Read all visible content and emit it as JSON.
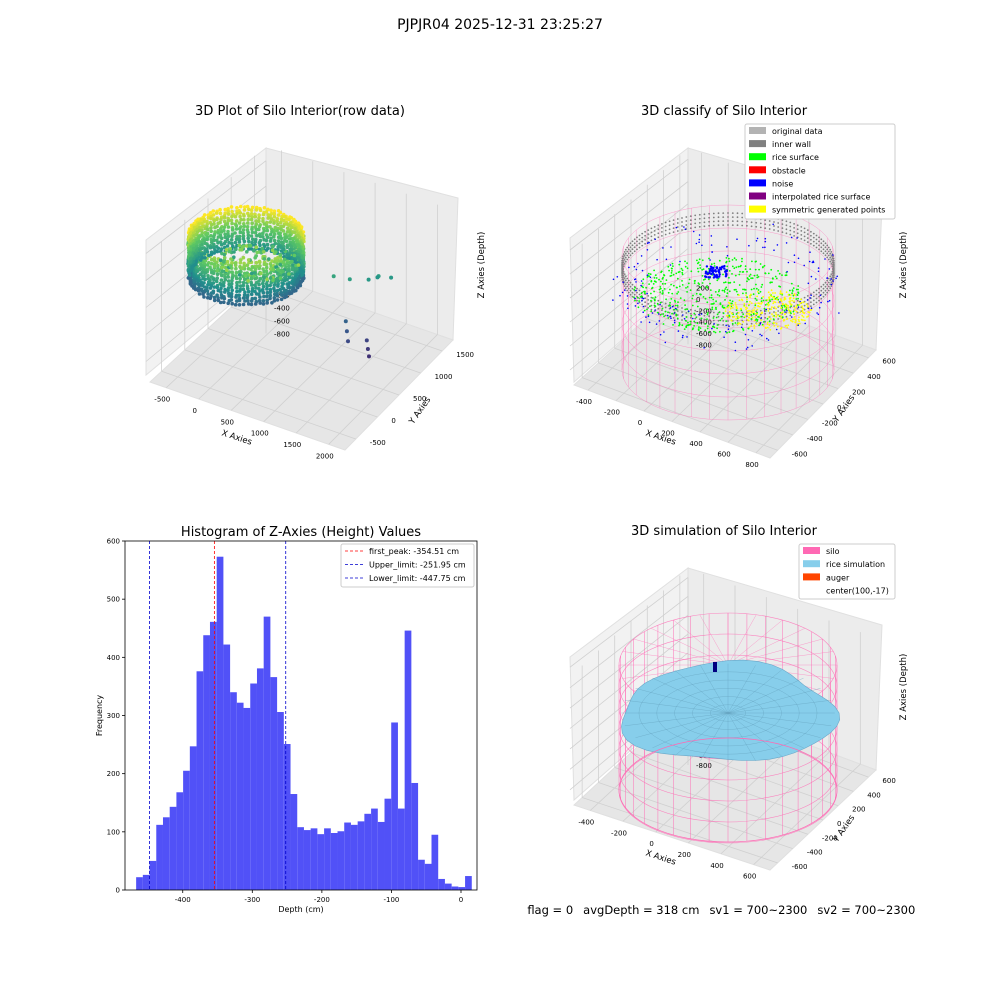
{
  "suptitle": "PJPJR04 2025-12-31 23:25:27",
  "status": {
    "flag": "flag = 0",
    "avg_depth": "avgDepth = 318 cm",
    "sv1": "sv1 = 700~2300",
    "sv2": "sv2 = 700~2300"
  },
  "colors": {
    "hist_bar": "#4b4bf7",
    "first_peak_line": "#ff0000",
    "limit_line": "#0000cc",
    "original_data": "#b3b3b3",
    "inner_wall": "#808080",
    "rice_surface": "#00ff00",
    "obstacle": "#ff0000",
    "noise": "#0000ff",
    "interpolated_rice_surface": "#800080",
    "symmetric_generated_points": "#ffff00",
    "silo": "#ff69b4",
    "rice_simulation": "#87ceeb",
    "auger": "#ff4500"
  },
  "chart_data": [
    {
      "id": "raw",
      "type": "scatter",
      "title": "3D Plot of Silo Interior(row data)",
      "xlabel": "X Axies",
      "ylabel": "Y Axies",
      "zlabel": "Z Axies (Depth)",
      "x_ticks": [
        "-500",
        "0",
        "500",
        "1000",
        "1500",
        "2000"
      ],
      "y_ticks": [
        "-500",
        "0",
        "500",
        "1000",
        "1500"
      ],
      "z_ticks": [
        "0",
        "-200",
        "-400",
        "-600",
        "-800"
      ],
      "xlim": [
        -650,
        2000
      ],
      "ylim": [
        -650,
        1600
      ],
      "zlim": [
        -950,
        50
      ],
      "colormap": "viridis",
      "outliers": [
        {
          "x": 900,
          "y": 700,
          "z": -300
        },
        {
          "x": 1050,
          "y": 800,
          "z": -330
        },
        {
          "x": 1200,
          "y": 950,
          "z": -360
        },
        {
          "x": 1300,
          "y": 1000,
          "z": -330
        },
        {
          "x": 1250,
          "y": 1050,
          "z": -370
        },
        {
          "x": 1400,
          "y": 1100,
          "z": -360
        },
        {
          "x": 1100,
          "y": 650,
          "z": -600
        },
        {
          "x": 1150,
          "y": 600,
          "z": -650
        },
        {
          "x": 1200,
          "y": 550,
          "z": -700
        },
        {
          "x": 1350,
          "y": 700,
          "z": -720
        },
        {
          "x": 1400,
          "y": 650,
          "z": -760
        },
        {
          "x": 1450,
          "y": 600,
          "z": -790
        }
      ]
    },
    {
      "id": "classify",
      "type": "scatter",
      "title": "3D classify of Silo Interior",
      "xlabel": "X Axies",
      "ylabel": "Y Axies",
      "zlabel": "Z Axies (Depth)",
      "x_ticks": [
        "-400",
        "-200",
        "0",
        "200",
        "400",
        "600",
        "800"
      ],
      "y_ticks": [
        "-600",
        "-400",
        "-200",
        "0",
        "200",
        "400",
        "600"
      ],
      "z_ticks": [
        "200",
        "0",
        "-200",
        "-400",
        "-600",
        "-800"
      ],
      "legend": [
        {
          "label": "original data",
          "color_key": "original_data"
        },
        {
          "label": "inner wall",
          "color_key": "inner_wall"
        },
        {
          "label": "rice surface",
          "color_key": "rice_surface"
        },
        {
          "label": "obstacle",
          "color_key": "obstacle"
        },
        {
          "label": "noise",
          "color_key": "noise"
        },
        {
          "label": "interpolated rice surface",
          "color_key": "interpolated_rice_surface"
        },
        {
          "label": "symmetric generated points",
          "color_key": "symmetric_generated_points"
        }
      ],
      "legend_position": "top-right"
    },
    {
      "id": "hist",
      "type": "bar",
      "title": "Histogram of Z-Axies (Height) Values",
      "xlabel": "Depth (cm)",
      "ylabel": "Frequency",
      "xlim": [
        -483,
        23
      ],
      "ylim": [
        0,
        600
      ],
      "x_ticks": [
        -400,
        -300,
        -200,
        -100,
        0
      ],
      "y_ticks": [
        0,
        100,
        200,
        300,
        400,
        500,
        600
      ],
      "bin_start": -467,
      "bin_width": 9.65,
      "values": [
        22,
        26,
        50,
        112,
        125,
        143,
        168,
        205,
        247,
        376,
        438,
        461,
        573,
        422,
        340,
        322,
        313,
        355,
        381,
        470,
        366,
        306,
        251,
        165,
        108,
        103,
        106,
        96,
        106,
        98,
        101,
        116,
        112,
        118,
        131,
        140,
        117,
        157,
        288,
        140,
        446,
        184,
        52,
        45,
        95,
        19,
        11,
        6,
        5,
        24
      ],
      "vlines": [
        {
          "label": "first_peak: -354.51 cm",
          "x": -354.51,
          "color_key": "first_peak_line"
        },
        {
          "label": "Upper_limit: -251.95 cm",
          "x": -251.95,
          "color_key": "limit_line"
        },
        {
          "label": "Lower_limit: -447.75 cm",
          "x": -447.75,
          "color_key": "limit_line"
        }
      ],
      "legend_position": "top-right"
    },
    {
      "id": "sim",
      "type": "surface",
      "title": "3D simulation of Silo Interior",
      "xlabel": "X Axies",
      "ylabel": "Y Axies",
      "zlabel": "Z Axies (Depth)",
      "x_ticks": [
        "-400",
        "-200",
        "0",
        "200",
        "400",
        "600"
      ],
      "y_ticks": [
        "-600",
        "-400",
        "-200",
        "0",
        "200",
        "400",
        "600"
      ],
      "z_ticks": [
        "400",
        "200",
        "0",
        "-200",
        "-400",
        "-600",
        "-800"
      ],
      "legend": [
        {
          "label": "silo",
          "color_key": "silo"
        },
        {
          "label": "rice simulation",
          "color_key": "rice_simulation"
        },
        {
          "label": "auger",
          "color_key": "auger"
        },
        {
          "label": "center(100,-17)",
          "color_key": ""
        }
      ],
      "legend_position": "top-right"
    }
  ]
}
